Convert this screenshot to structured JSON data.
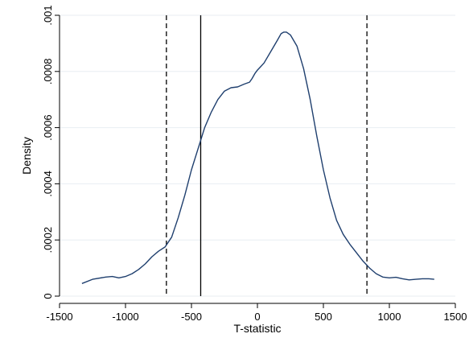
{
  "chart_data": {
    "type": "line",
    "title": "",
    "xlabel": "T-statistic",
    "ylabel": "Density",
    "xlim": [
      -1500,
      1500
    ],
    "ylim": [
      0,
      0.001
    ],
    "xticks": [
      -1500,
      -1000,
      -500,
      0,
      500,
      1000,
      1500
    ],
    "xtick_labels": [
      "-1500",
      "-1000",
      "-500",
      "0",
      "500",
      "1000",
      "1500"
    ],
    "yticks": [
      0,
      0.0002,
      0.0004,
      0.0006,
      0.0008,
      0.001
    ],
    "ytick_labels": [
      "0",
      ".0002",
      ".0004",
      ".0006",
      ".0008",
      ".001"
    ],
    "grid": true,
    "legend": "none",
    "series": [
      {
        "x": [
          -1330,
          -1250,
          -1150,
          -1100,
          -1050,
          -1000,
          -950,
          -900,
          -850,
          -800,
          -750,
          -700,
          -650,
          -600,
          -550,
          -500,
          -450,
          -400,
          -350,
          -300,
          -250,
          -200,
          -150,
          -100,
          -60,
          -40,
          -20,
          0,
          20,
          50,
          100,
          150,
          180,
          200,
          220,
          250,
          300,
          350,
          400,
          450,
          500,
          550,
          600,
          650,
          700,
          750,
          800,
          850,
          900,
          950,
          1000,
          1050,
          1100,
          1150,
          1200,
          1250,
          1300,
          1340
        ],
        "y": [
          4.5e-05,
          6e-05,
          6.8e-05,
          7e-05,
          6.5e-05,
          7e-05,
          8e-05,
          9.5e-05,
          0.000115,
          0.00014,
          0.00016,
          0.000175,
          0.00021,
          0.00028,
          0.00036,
          0.00045,
          0.000525,
          0.0006,
          0.000655,
          0.0007,
          0.00073,
          0.000742,
          0.000745,
          0.000755,
          0.000762,
          0.000775,
          0.000792,
          0.000805,
          0.000815,
          0.00083,
          0.00087,
          0.00091,
          0.000935,
          0.00094,
          0.00094,
          0.00093,
          0.00089,
          0.00081,
          0.0007,
          0.00057,
          0.00045,
          0.00035,
          0.00027,
          0.00022,
          0.000185,
          0.000155,
          0.000125,
          0.0001,
          8e-05,
          6.8e-05,
          6.5e-05,
          6.7e-05,
          6.2e-05,
          5.8e-05,
          6e-05,
          6.2e-05,
          6.2e-05,
          6e-05
        ],
        "color": "#1f3f6e"
      }
    ],
    "reference_lines": [
      {
        "x": -690,
        "style": "dashed",
        "color": "#000000"
      },
      {
        "x": -430,
        "style": "solid",
        "color": "#000000"
      },
      {
        "x": 830,
        "style": "dashed",
        "color": "#000000"
      }
    ]
  }
}
